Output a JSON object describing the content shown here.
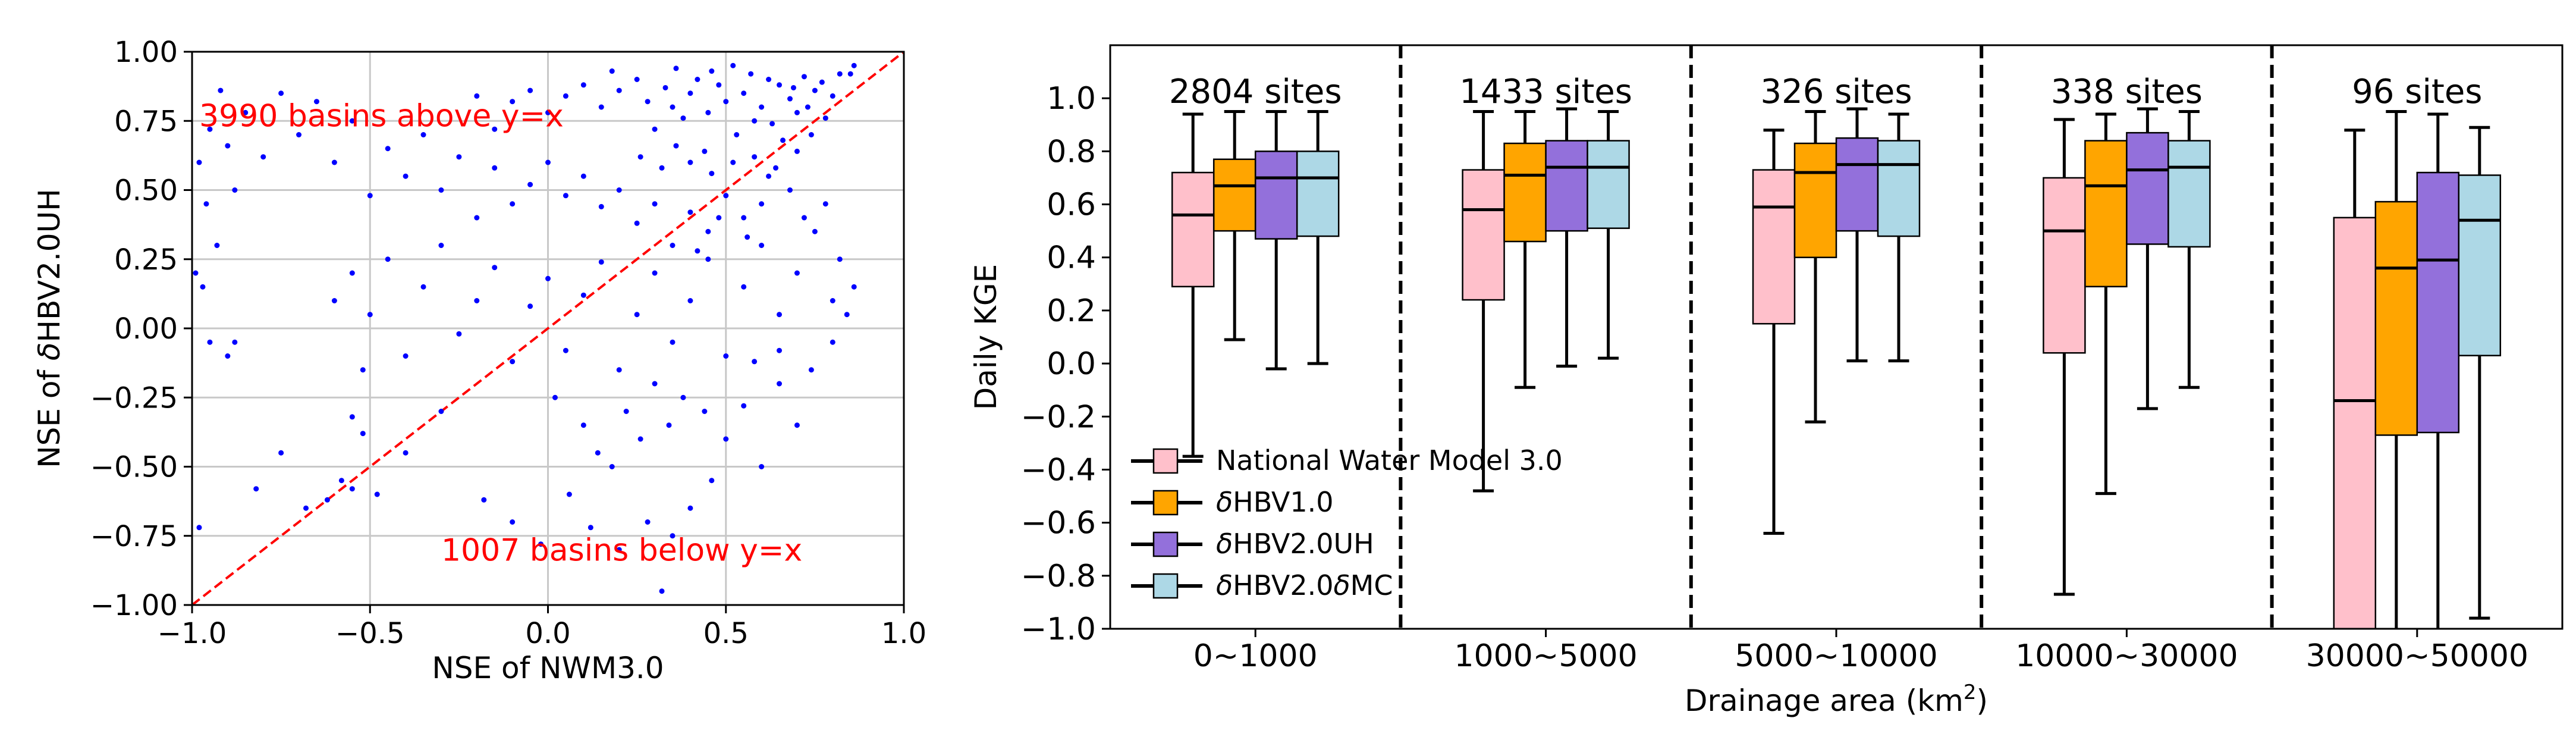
{
  "chart_data": [
    {
      "type": "scatter",
      "title": "",
      "xlabel": "NSE of NWM3.0",
      "ylabel_prefix": "NSE of ",
      "ylabel_delta": "δ",
      "ylabel_rest": "HBV2.0UH",
      "xlim": [
        -1.0,
        1.0
      ],
      "ylim": [
        -1.0,
        1.0
      ],
      "xticks": [
        -1.0,
        -0.5,
        0.0,
        0.5,
        1.0
      ],
      "xtick_labels": [
        "−1.0",
        "−0.5",
        "0.0",
        "0.5",
        "1.0"
      ],
      "yticks": [
        -1.0,
        -0.75,
        -0.5,
        -0.25,
        0.0,
        0.25,
        0.5,
        0.75,
        1.0
      ],
      "ytick_labels": [
        "−1.00",
        "−0.75",
        "−0.50",
        "−0.25",
        "0.00",
        "0.25",
        "0.50",
        "0.75",
        "1.00"
      ],
      "grid": true,
      "point_color": "#0000ff",
      "reference_line": {
        "from": [
          -1.0,
          -1.0
        ],
        "to": [
          1.0,
          1.0
        ],
        "color": "#ff0000",
        "style": "dashed"
      },
      "annotations": [
        {
          "text": "3990 basins above y=x",
          "x": -0.98,
          "y": 0.73,
          "color": "#ff0000"
        },
        {
          "text": "1007 basins below y=x",
          "x": -0.3,
          "y": -0.84,
          "color": "#ff0000"
        }
      ],
      "points_note": "",
      "points": [
        [
          0.55,
          0.85
        ],
        [
          0.6,
          0.8
        ],
        [
          0.65,
          0.88
        ],
        [
          0.7,
          0.78
        ],
        [
          0.75,
          0.86
        ],
        [
          0.58,
          0.75
        ],
        [
          0.62,
          0.9
        ],
        [
          0.68,
          0.83
        ],
        [
          0.72,
          0.91
        ],
        [
          0.5,
          0.82
        ],
        [
          0.45,
          0.78
        ],
        [
          0.4,
          0.85
        ],
        [
          0.35,
          0.8
        ],
        [
          0.3,
          0.72
        ],
        [
          0.48,
          0.88
        ],
        [
          0.53,
          0.7
        ],
        [
          0.57,
          0.92
        ],
        [
          0.63,
          0.74
        ],
        [
          0.66,
          0.68
        ],
        [
          0.69,
          0.87
        ],
        [
          0.73,
          0.8
        ],
        [
          0.77,
          0.89
        ],
        [
          0.8,
          0.84
        ],
        [
          0.82,
          0.92
        ],
        [
          0.78,
          0.76
        ],
        [
          0.44,
          0.64
        ],
        [
          0.42,
          0.9
        ],
        [
          0.38,
          0.76
        ],
        [
          0.33,
          0.87
        ],
        [
          0.28,
          0.82
        ],
        [
          0.25,
          0.9
        ],
        [
          0.2,
          0.86
        ],
        [
          0.15,
          0.8
        ],
        [
          0.1,
          0.88
        ],
        [
          0.05,
          0.84
        ],
        [
          0.0,
          0.78
        ],
        [
          -0.05,
          0.86
        ],
        [
          -0.1,
          0.82
        ],
        [
          -0.15,
          0.72
        ],
        [
          -0.2,
          0.84
        ],
        [
          0.52,
          0.6
        ],
        [
          0.58,
          0.62
        ],
        [
          0.64,
          0.58
        ],
        [
          0.7,
          0.64
        ],
        [
          0.74,
          0.7
        ],
        [
          0.46,
          0.56
        ],
        [
          0.4,
          0.6
        ],
        [
          0.36,
          0.66
        ],
        [
          0.32,
          0.58
        ],
        [
          0.26,
          0.62
        ],
        [
          0.6,
          0.45
        ],
        [
          0.55,
          0.4
        ],
        [
          0.5,
          0.48
        ],
        [
          0.45,
          0.35
        ],
        [
          0.4,
          0.42
        ],
        [
          0.35,
          0.3
        ],
        [
          0.3,
          0.45
        ],
        [
          0.25,
          0.38
        ],
        [
          0.2,
          0.5
        ],
        [
          0.15,
          0.44
        ],
        [
          0.1,
          0.55
        ],
        [
          0.05,
          0.48
        ],
        [
          0.0,
          0.6
        ],
        [
          -0.05,
          0.52
        ],
        [
          -0.1,
          0.45
        ],
        [
          -0.15,
          0.58
        ],
        [
          -0.2,
          0.4
        ],
        [
          -0.25,
          0.62
        ],
        [
          -0.3,
          0.5
        ],
        [
          -0.35,
          0.7
        ],
        [
          -0.4,
          0.55
        ],
        [
          -0.45,
          0.65
        ],
        [
          -0.5,
          0.48
        ],
        [
          -0.55,
          0.75
        ],
        [
          -0.6,
          0.6
        ],
        [
          -0.65,
          0.82
        ],
        [
          -0.7,
          0.7
        ],
        [
          -0.75,
          0.85
        ],
        [
          -0.8,
          0.62
        ],
        [
          -0.85,
          0.78
        ],
        [
          -0.9,
          0.66
        ],
        [
          -0.95,
          0.72
        ],
        [
          -0.98,
          0.6
        ],
        [
          -0.92,
          0.86
        ],
        [
          -0.88,
          0.5
        ],
        [
          -0.96,
          0.45
        ],
        [
          -0.93,
          0.3
        ],
        [
          -0.97,
          0.15
        ],
        [
          -0.99,
          0.2
        ],
        [
          -0.95,
          -0.05
        ],
        [
          -0.9,
          -0.1
        ],
        [
          -0.88,
          -0.05
        ],
        [
          -0.6,
          0.1
        ],
        [
          -0.55,
          0.2
        ],
        [
          -0.52,
          -0.15
        ],
        [
          -0.5,
          0.05
        ],
        [
          -0.45,
          0.25
        ],
        [
          -0.4,
          -0.1
        ],
        [
          -0.35,
          0.15
        ],
        [
          -0.3,
          0.3
        ],
        [
          -0.25,
          -0.02
        ],
        [
          -0.2,
          0.1
        ],
        [
          -0.15,
          0.22
        ],
        [
          -0.1,
          -0.12
        ],
        [
          -0.05,
          0.08
        ],
        [
          0.0,
          0.18
        ],
        [
          0.05,
          -0.08
        ],
        [
          0.1,
          0.12
        ],
        [
          0.15,
          0.24
        ],
        [
          0.2,
          -0.15
        ],
        [
          0.25,
          0.05
        ],
        [
          0.3,
          0.2
        ],
        [
          0.35,
          -0.05
        ],
        [
          0.4,
          0.1
        ],
        [
          0.45,
          0.25
        ],
        [
          0.5,
          -0.1
        ],
        [
          0.55,
          0.15
        ],
        [
          0.6,
          0.3
        ],
        [
          0.65,
          0.05
        ],
        [
          0.7,
          0.2
        ],
        [
          0.75,
          0.35
        ],
        [
          0.8,
          0.1
        ],
        [
          0.82,
          0.25
        ],
        [
          0.78,
          0.45
        ],
        [
          0.72,
          0.4
        ],
        [
          0.68,
          0.5
        ],
        [
          0.62,
          0.55
        ],
        [
          0.56,
          0.33
        ],
        [
          0.48,
          0.4
        ],
        [
          0.42,
          0.28
        ],
        [
          0.38,
          -0.25
        ],
        [
          0.34,
          -0.35
        ],
        [
          0.3,
          -0.2
        ],
        [
          0.26,
          -0.4
        ],
        [
          0.22,
          -0.3
        ],
        [
          0.18,
          -0.5
        ],
        [
          0.14,
          -0.45
        ],
        [
          0.1,
          -0.35
        ],
        [
          0.06,
          -0.6
        ],
        [
          0.02,
          -0.25
        ],
        [
          0.44,
          -0.3
        ],
        [
          0.5,
          -0.4
        ],
        [
          0.55,
          -0.28
        ],
        [
          0.6,
          -0.5
        ],
        [
          0.65,
          -0.2
        ],
        [
          0.7,
          -0.35
        ],
        [
          0.46,
          -0.55
        ],
        [
          0.4,
          -0.65
        ],
        [
          0.35,
          -0.75
        ],
        [
          0.32,
          -0.95
        ],
        [
          0.28,
          -0.7
        ],
        [
          0.2,
          -0.8
        ],
        [
          0.12,
          -0.72
        ],
        [
          -0.02,
          -0.78
        ],
        [
          -0.1,
          -0.7
        ],
        [
          -0.18,
          -0.62
        ],
        [
          -0.3,
          -0.3
        ],
        [
          -0.4,
          -0.45
        ],
        [
          -0.55,
          -0.58
        ],
        [
          -0.58,
          -0.55
        ],
        [
          -0.75,
          -0.45
        ],
        [
          -0.82,
          -0.58
        ],
        [
          -0.98,
          -0.72
        ],
        [
          -0.55,
          -0.32
        ],
        [
          -0.52,
          -0.38
        ],
        [
          -0.48,
          -0.6
        ],
        [
          -0.68,
          -0.65
        ],
        [
          -0.62,
          -0.62
        ],
        [
          0.58,
          -0.12
        ],
        [
          0.65,
          -0.08
        ],
        [
          0.74,
          -0.15
        ],
        [
          0.8,
          -0.05
        ],
        [
          0.84,
          0.05
        ],
        [
          0.86,
          0.15
        ],
        [
          0.85,
          0.92
        ],
        [
          0.86,
          0.95
        ],
        [
          0.52,
          0.95
        ],
        [
          0.46,
          0.93
        ],
        [
          0.36,
          0.94
        ],
        [
          0.18,
          0.93
        ]
      ]
    },
    {
      "type": "box",
      "title": "",
      "xlabel_prefix": "Drainage area (km",
      "xlabel_sup": "2",
      "xlabel_suffix": ")",
      "ylabel": "Daily KGE",
      "ylim": [
        -1.0,
        1.2
      ],
      "yticks": [
        -1.0,
        -0.8,
        -0.6,
        -0.4,
        -0.2,
        0.0,
        0.2,
        0.4,
        0.6,
        0.8,
        1.0
      ],
      "ytick_labels": [
        "−1.0",
        "−0.8",
        "−0.6",
        "−0.4",
        "−0.2",
        "0.0",
        "0.2",
        "0.4",
        "0.6",
        "0.8",
        "1.0"
      ],
      "categories": [
        "0~1000",
        "1000~5000",
        "5000~10000",
        "10000~30000",
        "30000~50000"
      ],
      "site_counts": [
        "2804 sites",
        "1433 sites",
        "326 sites",
        "338 sites",
        "96 sites"
      ],
      "legend_location": "lower-left",
      "series": [
        {
          "name": "National Water Model 3.0",
          "name_parts": [
            "National Water Model 3.0"
          ],
          "color": "#ffc0cb",
          "boxes": [
            {
              "whislo": -0.35,
              "q1": 0.29,
              "med": 0.56,
              "q3": 0.72,
              "whishi": 0.94
            },
            {
              "whislo": -0.48,
              "q1": 0.24,
              "med": 0.58,
              "q3": 0.73,
              "whishi": 0.95
            },
            {
              "whislo": -0.64,
              "q1": 0.15,
              "med": 0.59,
              "q3": 0.73,
              "whishi": 0.88
            },
            {
              "whislo": -0.87,
              "q1": 0.04,
              "med": 0.5,
              "q3": 0.7,
              "whishi": 0.92
            },
            {
              "whislo": -1.0,
              "q1": -1.0,
              "med": -0.14,
              "q3": 0.55,
              "whishi": 0.88
            }
          ]
        },
        {
          "name": "δHBV1.0",
          "name_parts": [
            "δ",
            "HBV1.0"
          ],
          "color": "#ffa500",
          "boxes": [
            {
              "whislo": 0.09,
              "q1": 0.5,
              "med": 0.67,
              "q3": 0.77,
              "whishi": 0.95
            },
            {
              "whislo": -0.09,
              "q1": 0.46,
              "med": 0.71,
              "q3": 0.83,
              "whishi": 0.95
            },
            {
              "whislo": -0.22,
              "q1": 0.4,
              "med": 0.72,
              "q3": 0.83,
              "whishi": 0.95
            },
            {
              "whislo": -0.49,
              "q1": 0.29,
              "med": 0.67,
              "q3": 0.84,
              "whishi": 0.94
            },
            {
              "whislo": -1.0,
              "q1": -0.27,
              "med": 0.36,
              "q3": 0.61,
              "whishi": 0.95
            }
          ]
        },
        {
          "name": "δHBV2.0UH",
          "name_parts": [
            "δ",
            "HBV2.0UH"
          ],
          "color": "#9370db",
          "boxes": [
            {
              "whislo": -0.02,
              "q1": 0.47,
              "med": 0.7,
              "q3": 0.8,
              "whishi": 0.95
            },
            {
              "whislo": -0.01,
              "q1": 0.5,
              "med": 0.74,
              "q3": 0.84,
              "whishi": 0.96
            },
            {
              "whislo": 0.01,
              "q1": 0.5,
              "med": 0.75,
              "q3": 0.85,
              "whishi": 0.96
            },
            {
              "whislo": -0.17,
              "q1": 0.45,
              "med": 0.73,
              "q3": 0.87,
              "whishi": 0.96
            },
            {
              "whislo": -1.0,
              "q1": -0.26,
              "med": 0.39,
              "q3": 0.72,
              "whishi": 0.94
            }
          ]
        },
        {
          "name": "δHBV2.0δMC",
          "name_parts": [
            "δ",
            "HBV2.0",
            "δ",
            "MC"
          ],
          "color": "#add8e6",
          "boxes": [
            {
              "whislo": 0.0,
              "q1": 0.48,
              "med": 0.7,
              "q3": 0.8,
              "whishi": 0.95
            },
            {
              "whislo": 0.02,
              "q1": 0.51,
              "med": 0.74,
              "q3": 0.84,
              "whishi": 0.95
            },
            {
              "whislo": 0.01,
              "q1": 0.48,
              "med": 0.75,
              "q3": 0.84,
              "whishi": 0.94
            },
            {
              "whislo": -0.09,
              "q1": 0.44,
              "med": 0.74,
              "q3": 0.84,
              "whishi": 0.95
            },
            {
              "whislo": -0.96,
              "q1": 0.03,
              "med": 0.54,
              "q3": 0.71,
              "whishi": 0.89
            }
          ]
        }
      ]
    }
  ]
}
